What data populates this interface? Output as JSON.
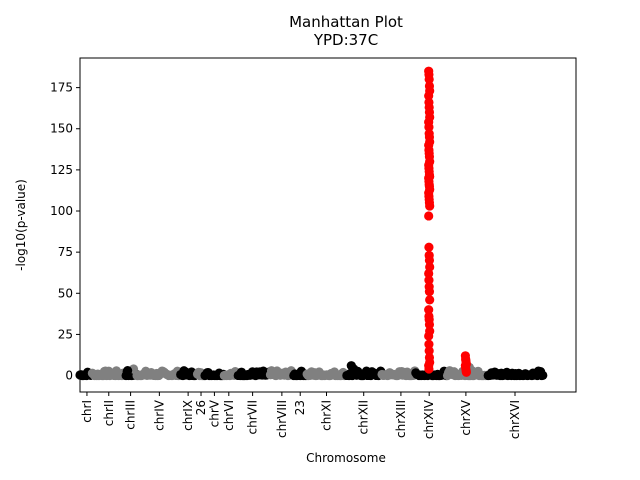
{
  "chart_data": {
    "type": "scatter",
    "title": "Manhattan Plot",
    "subtitle": "YPD:37C",
    "xlabel": "Chromosome",
    "ylabel": "-log10(p-value)",
    "ylim": [
      -10,
      193
    ],
    "xlim": [
      0,
      1000
    ],
    "yticks": [
      0,
      25,
      50,
      75,
      100,
      125,
      150,
      175
    ],
    "xticks": [
      {
        "label": "chrI",
        "x": 14
      },
      {
        "label": "chrII",
        "x": 58
      },
      {
        "label": "chrIII",
        "x": 102
      },
      {
        "label": "chrIV",
        "x": 160
      },
      {
        "label": "chrIX",
        "x": 218
      },
      {
        "label": "26",
        "x": 244
      },
      {
        "label": "chrV",
        "x": 271
      },
      {
        "label": "chrVI",
        "x": 300
      },
      {
        "label": "chrVII",
        "x": 348
      },
      {
        "label": "chrVIII",
        "x": 407
      },
      {
        "label": "23",
        "x": 444
      },
      {
        "label": "chrXI",
        "x": 497
      },
      {
        "label": "chrXII",
        "x": 572
      },
      {
        "label": "chrXIII",
        "x": 647
      },
      {
        "label": "chrXIV",
        "x": 704
      },
      {
        "label": "chrXV",
        "x": 778
      },
      {
        "label": "chrXVI",
        "x": 877
      }
    ],
    "grid": false,
    "colors": {
      "odd_chromosome": "#000000",
      "even_chromosome": "#808080",
      "significant": "#ff0000"
    },
    "chromosome_ranges": [
      {
        "label": "chrI",
        "x": [
          0,
          24
        ],
        "color": "black"
      },
      {
        "label": "chrII",
        "x": [
          25,
          92
        ],
        "color": "gray"
      },
      {
        "label": "chrIII",
        "x": [
          93,
          114
        ],
        "color": "black"
      },
      {
        "label": "chrIV",
        "x": [
          115,
          202
        ],
        "color": "gray"
      },
      {
        "label": "chrIX",
        "x": [
          203,
          236
        ],
        "color": "black"
      },
      {
        "label": "26",
        "x": [
          237,
          251
        ],
        "color": "gray"
      },
      {
        "label": "chrV",
        "x": [
          252,
          290
        ],
        "color": "black"
      },
      {
        "label": "chrVI",
        "x": [
          291,
          318
        ],
        "color": "gray"
      },
      {
        "label": "chrVII",
        "x": [
          319,
          383
        ],
        "color": "black"
      },
      {
        "label": "chrVIII",
        "x": [
          384,
          430
        ],
        "color": "gray"
      },
      {
        "label": "23",
        "x": [
          431,
          457
        ],
        "color": "black"
      },
      {
        "label": "chrXI",
        "x": [
          458,
          537
        ],
        "color": "gray"
      },
      {
        "label": "chrXII",
        "x": [
          538,
          608
        ],
        "color": "black"
      },
      {
        "label": "chrXIII",
        "x": [
          609,
          676
        ],
        "color": "gray"
      },
      {
        "label": "chrXIV",
        "x": [
          677,
          740
        ],
        "color": "black"
      },
      {
        "label": "chrXV",
        "x": [
          741,
          822
        ],
        "color": "gray"
      },
      {
        "label": "chrXVI",
        "x": [
          823,
          935
        ],
        "color": "black"
      }
    ],
    "baseline_noise_max": 3,
    "notable_points": [
      {
        "x": 547,
        "y": 6,
        "color": "black"
      },
      {
        "x": 552,
        "y": 4,
        "color": "black"
      },
      {
        "x": 108,
        "y": 4,
        "color": "gray"
      },
      {
        "x": 96,
        "y": 3,
        "color": "black"
      },
      {
        "x": 780,
        "y": 4,
        "color": "gray"
      },
      {
        "x": 785,
        "y": 5,
        "color": "gray"
      },
      {
        "x": 790,
        "y": 3,
        "color": "gray"
      }
    ],
    "significant_peaks": [
      {
        "chromosome": "chrXIV",
        "x": 704,
        "color": "red",
        "y": [
          185,
          183,
          180,
          176,
          173,
          170,
          166,
          163,
          160,
          157,
          154,
          151,
          147,
          145,
          142,
          140,
          137,
          135,
          133,
          130,
          128,
          126,
          124,
          122,
          121,
          120,
          118,
          116,
          115,
          113,
          111,
          109,
          107,
          105,
          103,
          97,
          78,
          73,
          70,
          66,
          62,
          58,
          54,
          51,
          46,
          40,
          36,
          34,
          31,
          27,
          24,
          19,
          15,
          11,
          8,
          6,
          4
        ]
      },
      {
        "chromosome": "chrXV",
        "x": 778,
        "color": "red",
        "y": [
          12,
          10,
          9,
          8,
          7,
          6,
          5,
          4,
          3,
          2
        ]
      }
    ]
  }
}
